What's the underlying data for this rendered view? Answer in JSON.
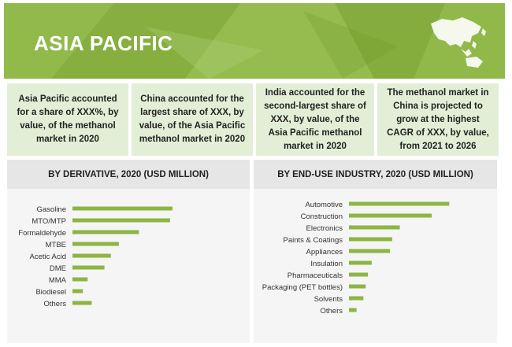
{
  "banner": {
    "title": "ASIA PACIFIC"
  },
  "cards": [
    {
      "text": "Asia Pacific accounted for a share of XXX%, by value, of the methanol market in 2020"
    },
    {
      "text": "China accounted for the largest share of XXX, by value, of the Asia Pacific methanol market in 2020"
    },
    {
      "text": "India accounted for the second-largest share of XXX, by value, of the Asia Pacific methanol market in 2020"
    },
    {
      "text": "The methanol market in China is projected to grow at the highest CAGR of XXX, by value, from 2021 to 2026"
    }
  ],
  "colors": {
    "banner": "#8cb544",
    "bar": "#8cb544",
    "card": "#e2efd6"
  },
  "icons": {
    "map": "asia-pacific-map-icon"
  },
  "chart_data": [
    {
      "type": "bar",
      "orientation": "horizontal",
      "title": "BY DERIVATIVE, 2020 (USD MILLION)",
      "categories": [
        "Gasoline",
        "MTO/MTP",
        "Formaldehyde",
        "MTBE",
        "Acetic Acid",
        "DME",
        "MMA",
        "Biodiesel",
        "Others"
      ],
      "values": [
        125,
        122,
        83,
        58,
        48,
        40,
        19,
        13,
        24
      ],
      "xlim": [
        0,
        130
      ],
      "grid": false,
      "legend": "none"
    },
    {
      "type": "bar",
      "orientation": "horizontal",
      "title": "BY END-USE INDUSTRY, 2020 (USD MILLION)",
      "categories": [
        "Automotive",
        "Construction",
        "Electronics",
        "Paints & Coatings",
        "Appliances",
        "Insulation",
        "Pharmaceuticals",
        "Packaging (PET bottles)",
        "Solvents",
        "Others"
      ],
      "values": [
        132,
        109,
        67,
        57,
        54,
        30,
        25,
        22,
        19,
        10
      ],
      "xlim": [
        0,
        140
      ],
      "grid": false,
      "legend": "none"
    }
  ]
}
